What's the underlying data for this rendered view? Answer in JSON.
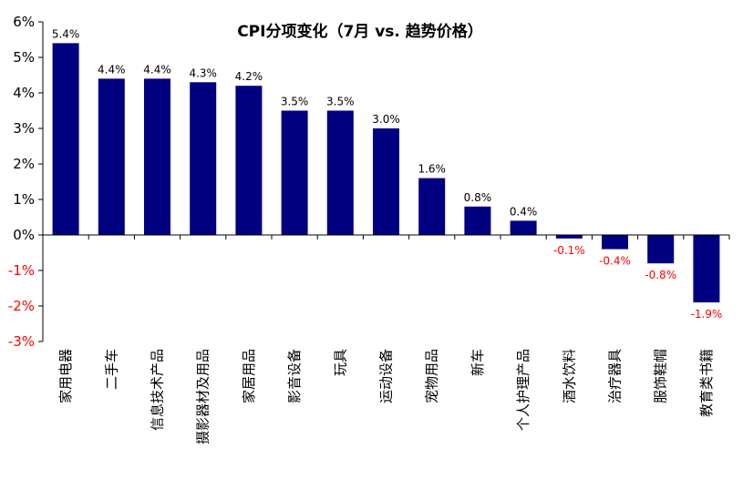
{
  "chart_data": {
    "type": "bar",
    "title": "CPI分项变化（7月 vs. 趋势价格）",
    "xlabel": "",
    "ylabel": "",
    "ylim": [
      -3,
      6
    ],
    "yticks": [
      6,
      5,
      4,
      3,
      2,
      1,
      0,
      -1,
      -2,
      -3
    ],
    "ytick_labels": [
      "6%",
      "5%",
      "4%",
      "3%",
      "2%",
      "1%",
      "0%",
      "-1%",
      "-2%",
      "-3%"
    ],
    "categories": [
      "家用电器",
      "二手车",
      "信息技术产品",
      "摄影器材及用品",
      "家居用品",
      "影音设备",
      "玩具",
      "运动设备",
      "宠物用品",
      "新车",
      "个人护理产品",
      "酒水饮料",
      "治疗器具",
      "服饰鞋帽",
      "教育类书籍"
    ],
    "values": [
      5.4,
      4.4,
      4.4,
      4.3,
      4.2,
      3.5,
      3.5,
      3.0,
      1.6,
      0.8,
      0.4,
      -0.1,
      -0.4,
      -0.8,
      -1.9
    ],
    "data_labels": [
      "5.4%",
      "4.4%",
      "4.4%",
      "4.3%",
      "4.2%",
      "3.5%",
      "3.5%",
      "3.0%",
      "1.6%",
      "0.8%",
      "0.4%",
      "-0.1%",
      "-0.4%",
      "-0.8%",
      "-1.9%"
    ],
    "grid": false,
    "legend": "none"
  },
  "colors": {
    "bar": "#000080",
    "positive_label": "#000000",
    "negative_label": "#ff0000",
    "negative_tick": "#ff0000",
    "axis": "#000000"
  }
}
